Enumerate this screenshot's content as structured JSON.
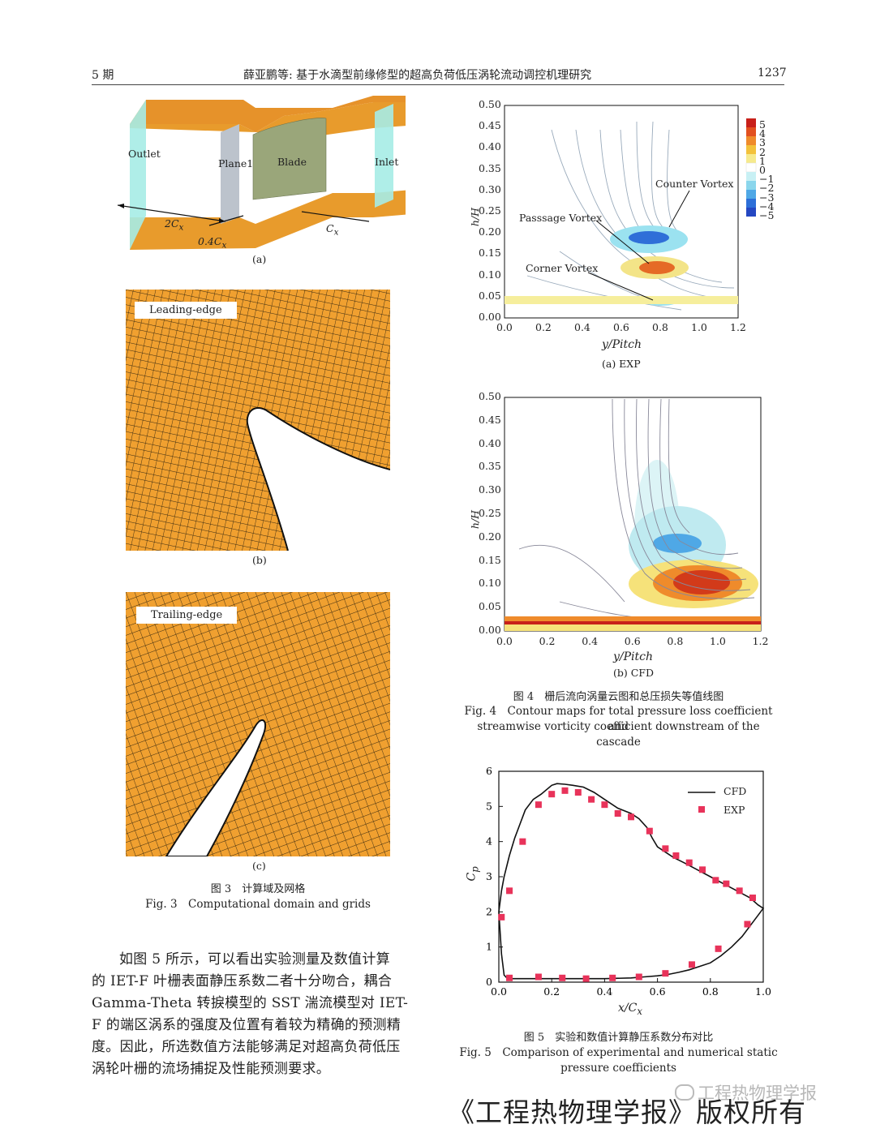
{
  "header": {
    "issue": "5 期",
    "title": "薛亚鹏等: 基于水滴型前缘修型的超高负荷低压涡轮流动调控机理研究",
    "page": "1237"
  },
  "fig3": {
    "a": {
      "outlet": "Outlet",
      "plane1": "Plane1",
      "blade": "Blade",
      "inlet": "Inlet",
      "dim1": "2C",
      "dim2": "0.4C",
      "dim3": "C",
      "dim_sub": "x",
      "label": "(a)"
    },
    "b": {
      "tag": "Leading-edge",
      "label": "(b)"
    },
    "c": {
      "tag": "Trailing-edge",
      "label": "(c)"
    },
    "caption_cn": "图 3　计算域及网格",
    "caption_en": "Fig. 3　Computational domain and grids"
  },
  "fig4": {
    "a": {
      "label": "(a) EXP",
      "xlabel": "y/Pitch",
      "ylabel": "h/H",
      "yticks": [
        "0.00",
        "0.05",
        "0.10",
        "0.15",
        "0.20",
        "0.25",
        "0.30",
        "0.35",
        "0.40",
        "0.45",
        "0.50"
      ],
      "xticks": [
        "0.0",
        "0.2",
        "0.4",
        "0.6",
        "0.8",
        "1.0",
        "1.2"
      ],
      "annotations": [
        "Counter Vortex",
        "Passsage Vortex",
        "Corner Vortex"
      ],
      "colorbar": [
        "5",
        "4",
        "3",
        "2",
        "1",
        "0",
        "−1",
        "−2",
        "−3",
        "−4",
        "−5"
      ]
    },
    "b": {
      "label": "(b) CFD",
      "xlabel": "y/Pitch",
      "ylabel": "h/H",
      "yticks": [
        "0.00",
        "0.05",
        "0.10",
        "0.15",
        "0.20",
        "0.25",
        "0.30",
        "0.35",
        "0.40",
        "0.45",
        "0.50"
      ],
      "xticks": [
        "0.0",
        "0.2",
        "0.4",
        "0.6",
        "0.8",
        "1.0",
        "1.2"
      ]
    },
    "caption_cn": "图 4　栅后流向涡量云图和总压损失等值线图",
    "caption_en1": "Fig. 4　Contour maps for total pressure loss coefficient and",
    "caption_en2": "streamwise vorticity coefficient downstream of the cascade"
  },
  "fig5": {
    "caption_cn": "图 5　实验和数值计算静压系数分布对比",
    "caption_en1": "Fig. 5　Comparison of experimental and numerical static",
    "caption_en2": "pressure coefficients"
  },
  "chart_data": {
    "type": "line",
    "xlabel": "x/C",
    "xlabel_sub": "x",
    "ylabel": "C",
    "ylabel_sub": "p",
    "xlim": [
      0,
      1.0
    ],
    "ylim": [
      0,
      6
    ],
    "xticks": [
      "0.0",
      "0.2",
      "0.4",
      "0.6",
      "0.8",
      "1.0"
    ],
    "yticks": [
      "0",
      "1",
      "2",
      "3",
      "4",
      "5",
      "6"
    ],
    "legend": {
      "position": "top-right",
      "entries": [
        "CFD",
        "EXP"
      ]
    },
    "series": [
      {
        "name": "CFD",
        "kind": "line",
        "x": [
          0.0,
          0.01,
          0.02,
          0.04,
          0.06,
          0.08,
          0.1,
          0.13,
          0.16,
          0.2,
          0.22,
          0.25,
          0.28,
          0.32,
          0.36,
          0.4,
          0.45,
          0.5,
          0.53,
          0.56,
          0.58,
          0.6,
          0.63,
          0.66,
          0.7,
          0.75,
          0.8,
          0.85,
          0.9,
          0.95,
          0.98,
          1.0,
          0.98,
          0.95,
          0.92,
          0.88,
          0.84,
          0.8,
          0.76,
          0.72,
          0.68,
          0.64,
          0.6,
          0.55,
          0.5,
          0.4,
          0.3,
          0.2,
          0.1,
          0.05,
          0.03,
          0.02,
          0.01,
          0.0
        ],
        "y": [
          2.0,
          2.6,
          3.0,
          3.6,
          4.1,
          4.5,
          4.9,
          5.2,
          5.35,
          5.6,
          5.65,
          5.63,
          5.6,
          5.55,
          5.4,
          5.2,
          4.95,
          4.8,
          4.65,
          4.4,
          4.1,
          3.85,
          3.7,
          3.55,
          3.4,
          3.2,
          3.0,
          2.8,
          2.6,
          2.4,
          2.2,
          2.1,
          1.9,
          1.6,
          1.3,
          1.0,
          0.75,
          0.55,
          0.45,
          0.35,
          0.28,
          0.22,
          0.18,
          0.15,
          0.12,
          0.1,
          0.1,
          0.1,
          0.1,
          0.1,
          0.12,
          0.2,
          0.8,
          2.0
        ]
      },
      {
        "name": "EXP",
        "kind": "scatter",
        "x": [
          0.01,
          0.04,
          0.09,
          0.15,
          0.2,
          0.25,
          0.3,
          0.35,
          0.4,
          0.45,
          0.5,
          0.57,
          0.63,
          0.67,
          0.72,
          0.77,
          0.82,
          0.86,
          0.91,
          0.96,
          0.94,
          0.83,
          0.73,
          0.63,
          0.53,
          0.43,
          0.33,
          0.24,
          0.15,
          0.04
        ],
        "y": [
          1.85,
          2.6,
          4.0,
          5.05,
          5.35,
          5.45,
          5.4,
          5.2,
          5.05,
          4.8,
          4.7,
          4.3,
          3.8,
          3.6,
          3.4,
          3.2,
          2.9,
          2.8,
          2.6,
          2.4,
          1.65,
          0.95,
          0.5,
          0.25,
          0.15,
          0.12,
          0.1,
          0.12,
          0.15,
          0.12
        ]
      }
    ]
  },
  "body_lines": [
    "如图 5 所示，可以看出实验测量及数值计算",
    "的 IET-F 叶栅表面静压系数二者十分吻合，耦合",
    "Gamma-Theta 转捩模型的 SST 湍流模型对 IET-",
    "F 的端区涡系的强度及位置有着较为精确的预测精",
    "度。因此，所选数值方法能够满足对超高负荷低压",
    "涡轮叶栅的流场捕捉及性能预测要求。"
  ],
  "watermark": "工程热物理学报",
  "footer": "《工程热物理学报》版权所有",
  "colors": {
    "mesh_fill": "#f0a030",
    "mesh_line": "#3a2a10",
    "blade": "#9aa67a",
    "inlet": "#9ee8e4",
    "cfd_line": "#111111",
    "exp_marker": "#e8335a"
  }
}
